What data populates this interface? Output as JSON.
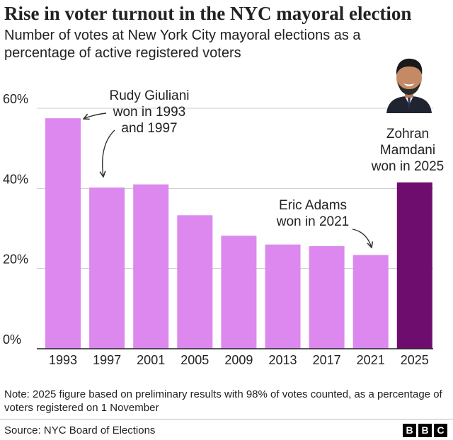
{
  "title": "Rise in voter turnout in the NYC mayoral election",
  "subtitle": "Number of votes at New York City mayoral elections as a percentage of active registered voters",
  "chart_data": {
    "type": "bar",
    "categories": [
      "1993",
      "1997",
      "2001",
      "2005",
      "2009",
      "2013",
      "2017",
      "2021",
      "2025"
    ],
    "values": [
      57.5,
      40.2,
      41.0,
      33.3,
      28.2,
      26.0,
      25.6,
      23.4,
      41.5
    ],
    "yticks": [
      "0%",
      "20%",
      "40%",
      "60%"
    ],
    "ytick_values": [
      0,
      20,
      40,
      60
    ],
    "ylim": [
      0,
      60
    ],
    "grid": true,
    "colors": {
      "default": "#dd88ee",
      "highlight": "#6e0d6e",
      "grid": "#cccccc",
      "axis": "#222222"
    },
    "highlight_index": 8,
    "annotations": [
      {
        "lines": [
          "Rudy Giuliani",
          "won in 1993",
          "and 1997"
        ]
      },
      {
        "lines": [
          "Eric Adams",
          "won in 2021"
        ]
      },
      {
        "lines": [
          "Zohran",
          "Mamdani",
          "won in 2025"
        ]
      }
    ]
  },
  "note": "Note: 2025 figure based on preliminary results with 98% of votes counted, as a percentage of voters registered on 1 November",
  "source": "Source: NYC Board of Elections",
  "logo": [
    "B",
    "B",
    "C"
  ]
}
